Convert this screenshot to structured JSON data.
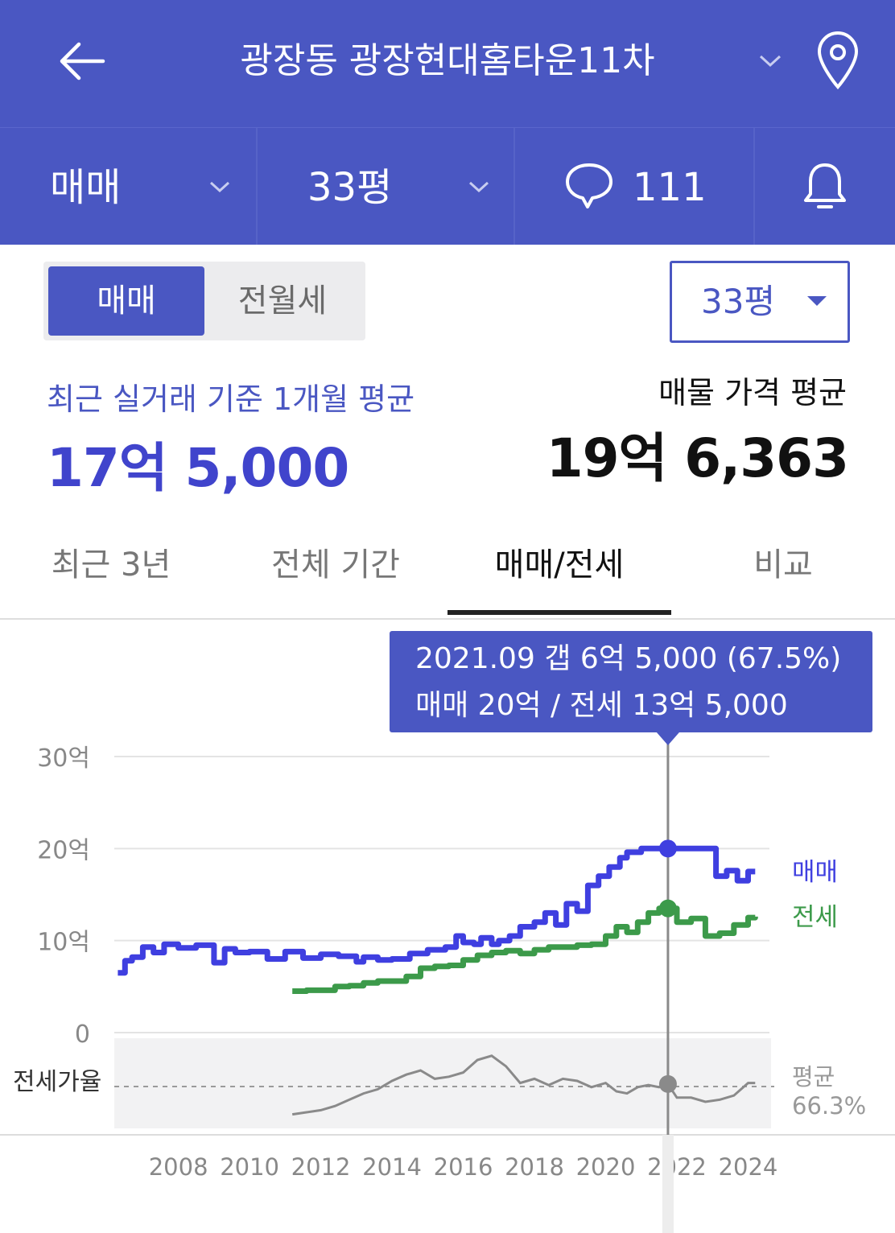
{
  "header": {
    "title": "광장동 광장현대홈타운11차",
    "icons": [
      "back-arrow-icon",
      "chevron-down-icon",
      "map-pin-icon"
    ]
  },
  "filters": {
    "trade_type": "매매",
    "size": "33평",
    "comment_count": "111",
    "icons": [
      "chevron-down-icon",
      "speech-bubble-icon",
      "bell-icon"
    ]
  },
  "segment": {
    "on": "매매",
    "off": "전월세"
  },
  "size_select": {
    "value": "33평"
  },
  "summary": {
    "recent_label": "최근 실거래 기준 1개월 평균",
    "recent_value": "17억 5,000",
    "listing_label": "매물 가격 평균",
    "listing_value": "19억 6,363"
  },
  "tabs": [
    "최근 3년",
    "전체 기간",
    "매매/전세",
    "비교"
  ],
  "active_tab": 2,
  "colors": {
    "brand": "#4a57c2",
    "sale_line": "#3f3fe0",
    "jeonse_line": "#3c9a4a",
    "ratio_line": "#8a8a8a"
  },
  "tooltip": {
    "line1": "2021.09  갭 6억 5,000 (67.5%)",
    "line2": "매매 20억 / 전세 13억 5,000"
  },
  "chart_data": {
    "type": "line",
    "ylabel_unit": "억",
    "y_ticks": [
      "30억",
      "20억",
      "10억",
      "0"
    ],
    "ylim": [
      0,
      30
    ],
    "x_ticks": [
      "2008",
      "2010",
      "2012",
      "2014",
      "2016",
      "2018",
      "2020",
      "2022",
      "2024"
    ],
    "xlim": [
      2006.2,
      2024.6
    ],
    "series": [
      {
        "name": "매매",
        "x": [
          2006.3,
          2006.5,
          2006.7,
          2007.0,
          2007.3,
          2007.6,
          2008.0,
          2008.5,
          2009.0,
          2009.3,
          2009.6,
          2010.0,
          2010.5,
          2011.0,
          2011.5,
          2012.0,
          2012.5,
          2013.0,
          2013.2,
          2013.6,
          2014.0,
          2014.5,
          2015.0,
          2015.5,
          2015.8,
          2016.0,
          2016.3,
          2016.5,
          2016.8,
          2017.0,
          2017.3,
          2017.6,
          2018.0,
          2018.3,
          2018.6,
          2018.9,
          2019.2,
          2019.5,
          2019.8,
          2020.1,
          2020.4,
          2020.6,
          2021.0,
          2021.4,
          2021.75,
          2022.1,
          2022.5,
          2022.9,
          2023.1,
          2023.4,
          2023.7,
          2024.0,
          2024.2
        ],
        "values": [
          6.5,
          7.8,
          8.2,
          9.3,
          8.7,
          9.6,
          9.2,
          9.5,
          7.6,
          9.1,
          8.7,
          8.8,
          8.0,
          8.8,
          8.1,
          8.5,
          8.3,
          7.7,
          8.2,
          7.9,
          8.0,
          8.6,
          9.0,
          9.3,
          10.5,
          9.8,
          9.6,
          10.3,
          9.6,
          10.0,
          10.5,
          11.5,
          12.0,
          13.0,
          11.7,
          14.0,
          13.2,
          16.0,
          17.0,
          18.0,
          19.0,
          19.6,
          20.0,
          20.0,
          20.0,
          20.0,
          20.0,
          20.0,
          17.0,
          17.6,
          16.5,
          17.5,
          17.5
        ]
      },
      {
        "name": "전세",
        "x": [
          2011.2,
          2011.6,
          2012.0,
          2012.4,
          2012.8,
          2013.2,
          2013.6,
          2014.0,
          2014.4,
          2014.8,
          2015.2,
          2015.6,
          2016.0,
          2016.4,
          2016.8,
          2017.2,
          2017.6,
          2018.0,
          2018.4,
          2018.8,
          2019.2,
          2019.6,
          2020.0,
          2020.3,
          2020.6,
          2020.9,
          2021.2,
          2021.5,
          2021.75,
          2022.0,
          2022.4,
          2022.8,
          2023.2,
          2023.6,
          2024.0,
          2024.2
        ],
        "values": [
          4.5,
          4.6,
          4.6,
          5.0,
          5.1,
          5.4,
          5.6,
          5.6,
          6.1,
          7.0,
          7.2,
          7.3,
          7.9,
          8.4,
          8.7,
          8.9,
          8.6,
          9.0,
          9.3,
          9.3,
          9.5,
          9.6,
          10.5,
          11.5,
          10.9,
          12.0,
          13.0,
          13.5,
          13.5,
          12.0,
          12.4,
          10.5,
          10.8,
          11.7,
          12.5,
          12.6
        ]
      }
    ],
    "ratio": {
      "label": "전세가율",
      "average_label": "평균",
      "average_value": "66.3%",
      "x": [
        2011.2,
        2011.6,
        2012.0,
        2012.4,
        2012.8,
        2013.2,
        2013.6,
        2014.0,
        2014.4,
        2014.8,
        2015.2,
        2015.6,
        2016.0,
        2016.4,
        2016.8,
        2017.2,
        2017.6,
        2018.0,
        2018.4,
        2018.8,
        2019.2,
        2019.6,
        2020.0,
        2020.3,
        2020.6,
        2020.9,
        2021.2,
        2021.5,
        2021.75,
        2022.0,
        2022.4,
        2022.8,
        2023.2,
        2023.6,
        2024.0,
        2024.2
      ],
      "values": [
        53,
        54,
        55,
        57,
        60,
        63,
        65,
        69,
        72,
        74,
        70,
        71,
        73,
        79,
        81,
        76,
        68,
        70,
        67,
        70,
        69,
        66,
        68,
        64,
        63,
        66,
        67,
        66,
        67.5,
        61,
        61,
        59,
        60,
        62,
        68,
        68
      ]
    },
    "highlight": {
      "x": 2021.75,
      "label": "2021.09"
    },
    "legend_position": "right"
  }
}
